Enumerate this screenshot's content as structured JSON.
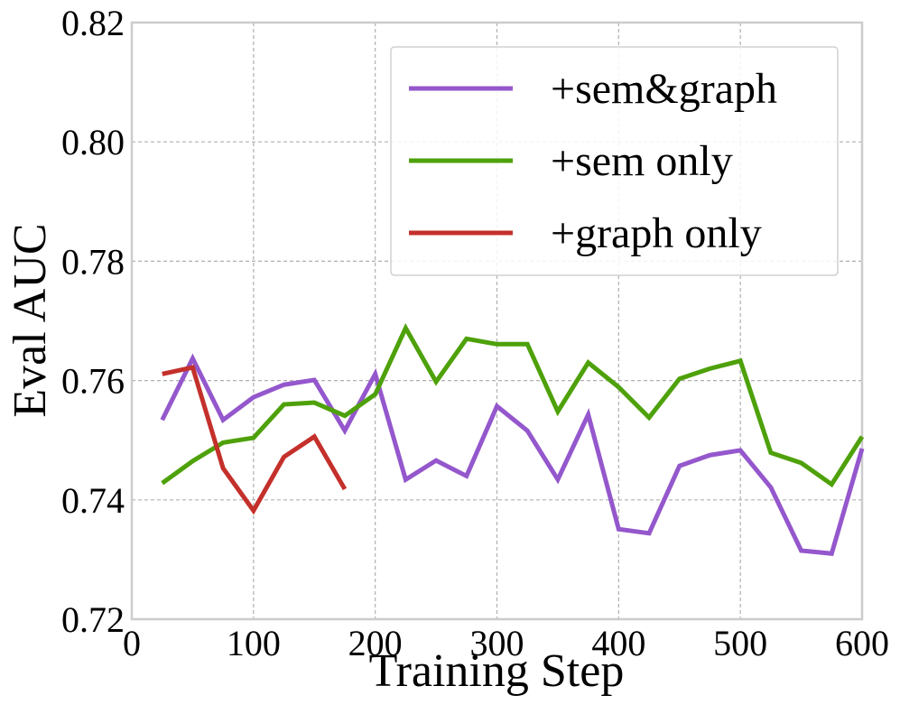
{
  "chart_data": {
    "type": "line",
    "x_label": "Training Step",
    "y_label": "Eval AUC",
    "x": [
      25,
      50,
      75,
      100,
      125,
      150,
      175,
      200,
      225,
      250,
      275,
      300,
      325,
      350,
      375,
      400,
      425,
      450,
      475,
      500,
      525,
      550,
      575,
      600
    ],
    "series": [
      {
        "name": "+sem&graph",
        "color": "#9457cc",
        "values": [
          0.7534,
          0.7637,
          0.7534,
          0.7572,
          0.7593,
          0.7601,
          0.7516,
          0.7611,
          0.7434,
          0.7466,
          0.744,
          0.7557,
          0.7516,
          0.7434,
          0.7543,
          0.7351,
          0.7344,
          0.7457,
          0.7475,
          0.7483,
          0.7421,
          0.7315,
          0.731,
          0.7486
        ]
      },
      {
        "name": "+sem only",
        "color": "#4ea10a",
        "values": [
          0.7428,
          0.7465,
          0.7496,
          0.7504,
          0.756,
          0.7563,
          0.7541,
          0.7577,
          0.7688,
          0.7598,
          0.767,
          0.7661,
          0.7661,
          0.7548,
          0.763,
          0.7589,
          0.7538,
          0.7603,
          0.762,
          0.7633,
          0.7479,
          0.7462,
          0.7426,
          0.7506
        ]
      },
      {
        "name": "+graph only",
        "color": "#c4302b",
        "values": [
          0.7611,
          0.7622,
          0.7453,
          0.7382,
          0.7472,
          0.7506,
          0.7418,
          null,
          null,
          null,
          null,
          null,
          null,
          null,
          null,
          null,
          null,
          null,
          null,
          null,
          null,
          null,
          null,
          null
        ]
      }
    ],
    "xlim": [
      0,
      600
    ],
    "xticks": [
      0,
      100,
      200,
      300,
      400,
      500,
      600
    ],
    "ylim": [
      0.72,
      0.82
    ],
    "yticks": [
      {
        "value": 0.72,
        "label": "0.72"
      },
      {
        "value": 0.74,
        "label": "0.74"
      },
      {
        "value": 0.76,
        "label": "0.76"
      },
      {
        "value": 0.78,
        "label": "0.78"
      },
      {
        "value": 0.8,
        "label": "0.80"
      },
      {
        "value": 0.82,
        "label": "0.82"
      }
    ],
    "grid": true,
    "legend": "upper right"
  }
}
